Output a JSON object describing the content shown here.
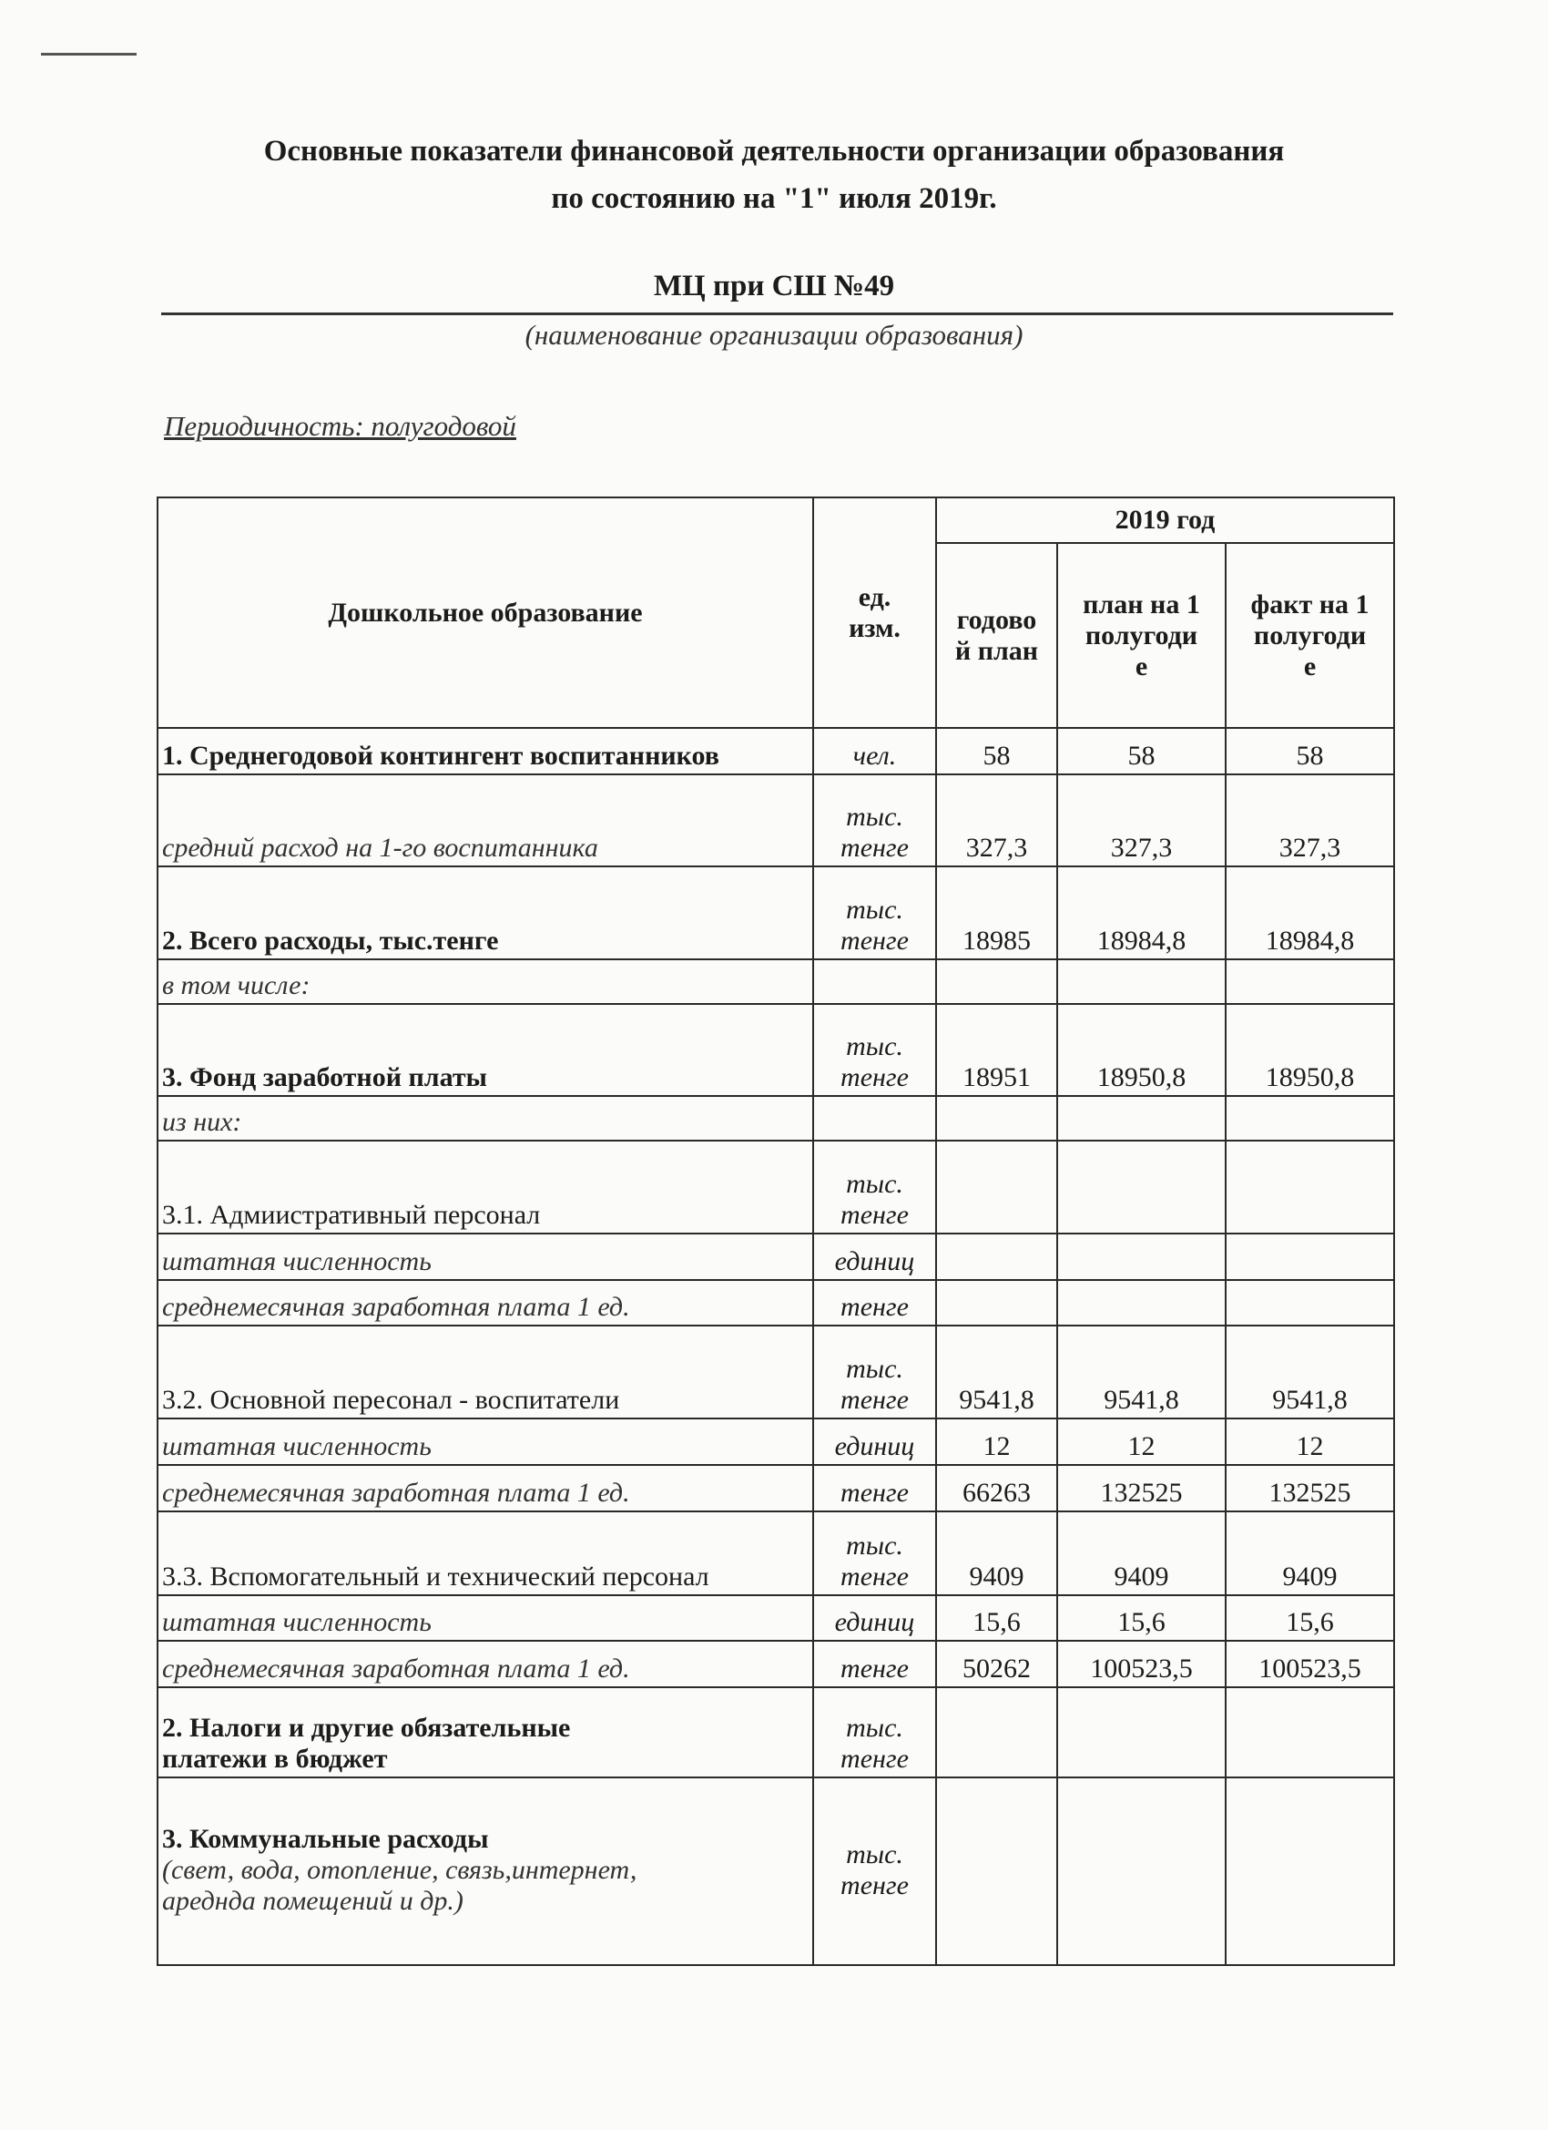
{
  "header": {
    "title_line1": "Основные показатели финансовой деятельности организации образования",
    "title_line2": "по состоянию на \"1\" июля 2019г.",
    "organization": "МЦ при СШ №49",
    "organization_caption": "(наименование организации образования)",
    "periodicity": "Периодичность: полугодовой"
  },
  "table": {
    "header": {
      "section": "Дошкольное образование",
      "unit": [
        "ед.",
        "изм."
      ],
      "year": "2019 год",
      "columns": [
        [
          "годово",
          "й план"
        ],
        [
          "план на 1",
          "полугоди",
          "е"
        ],
        [
          "факт на 1",
          "полугоди",
          "е"
        ]
      ]
    },
    "rows": [
      {
        "label": [
          "1. Среднегодовой контингент воспитанников"
        ],
        "style": "bold",
        "unit": [
          "чел."
        ],
        "values": [
          "58",
          "58",
          "58"
        ]
      },
      {
        "label": [
          "средний расход на 1-го воспитанника"
        ],
        "style": "italic",
        "unit": [
          "тыс.",
          "тенге"
        ],
        "values": [
          "327,3",
          "327,3",
          "327,3"
        ]
      },
      {
        "label": [
          "2. Всего расходы, тыс.тенге"
        ],
        "style": "bold",
        "unit": [
          "тыс.",
          "тенге"
        ],
        "values": [
          "18985",
          "18984,8",
          "18984,8"
        ]
      },
      {
        "label": [
          "в том числе:"
        ],
        "style": "italic",
        "unit": [],
        "values": [
          "",
          "",
          ""
        ]
      },
      {
        "label": [
          "3. Фонд заработной платы"
        ],
        "style": "bold",
        "unit": [
          "тыс.",
          "тенге"
        ],
        "values": [
          "18951",
          "18950,8",
          "18950,8"
        ]
      },
      {
        "label": [
          "из них:"
        ],
        "style": "italic",
        "unit": [],
        "values": [
          "",
          "",
          ""
        ]
      },
      {
        "label": [
          "3.1. Адмиистративный персонал"
        ],
        "style": "normal",
        "unit": [
          "тыс.",
          "тенге"
        ],
        "values": [
          "",
          "",
          ""
        ]
      },
      {
        "label": [
          "штатная численность"
        ],
        "style": "italic",
        "unit": [
          "единиц"
        ],
        "values": [
          "",
          "",
          ""
        ]
      },
      {
        "label": [
          "среднемесячная заработная плата 1 ед."
        ],
        "style": "italic",
        "unit": [
          "тенге"
        ],
        "values": [
          "",
          "",
          ""
        ]
      },
      {
        "label": [
          "3.2. Основной пересонал - воспитатели"
        ],
        "style": "normal",
        "unit": [
          "тыс.",
          "тенге"
        ],
        "values": [
          "9541,8",
          "9541,8",
          "9541,8"
        ]
      },
      {
        "label": [
          "штатная численность"
        ],
        "style": "italic",
        "unit": [
          "единиц"
        ],
        "values": [
          "12",
          "12",
          "12"
        ]
      },
      {
        "label": [
          "среднемесячная заработная плата 1 ед."
        ],
        "style": "italic",
        "unit": [
          "тенге"
        ],
        "values": [
          "66263",
          "132525",
          "132525"
        ]
      },
      {
        "label": [
          "3.3. Вспомогательный и технический персонал"
        ],
        "style": "normal",
        "unit": [
          "тыс.",
          "тенге"
        ],
        "values": [
          "9409",
          "9409",
          "9409"
        ]
      },
      {
        "label": [
          "штатная численность"
        ],
        "style": "italic",
        "unit": [
          "единиц"
        ],
        "values": [
          "15,6",
          "15,6",
          "15,6"
        ]
      },
      {
        "label": [
          "среднемесячная заработная плата 1 ед."
        ],
        "style": "italic",
        "unit": [
          "тенге"
        ],
        "values": [
          "50262",
          "100523,5",
          "100523,5"
        ]
      },
      {
        "label": [
          "2. Налоги и другие обязательные",
          "платежи в бюджет"
        ],
        "style": "bold",
        "unit": [
          "тыс.",
          "тенге"
        ],
        "values": [
          "",
          "",
          ""
        ]
      },
      {
        "label": [
          "3. Коммунальные расходы",
          "(свет, вода, отопление, связь,интернет,",
          "ареднда помещений и др.)"
        ],
        "style": "bold-italic-sub",
        "unit": [
          "тыс.",
          "тенге"
        ],
        "values": [
          "",
          "",
          ""
        ]
      }
    ]
  }
}
